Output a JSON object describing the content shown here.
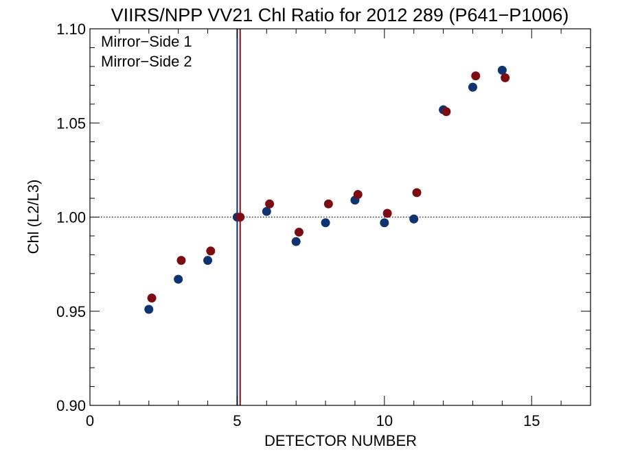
{
  "chart_data": {
    "type": "scatter",
    "title": "VIIRS/NPP VV21 Chl Ratio for 2012 289 (P641−P1006)",
    "xlabel": "DETECTOR NUMBER",
    "ylabel": "Chl (L2/L3)",
    "xlim": [
      0,
      17
    ],
    "ylim": [
      0.9,
      1.1
    ],
    "x_ticks": [
      0,
      5,
      10,
      15
    ],
    "x_tick_labels": [
      "0",
      "5",
      "10",
      "15"
    ],
    "y_ticks": [
      0.9,
      0.95,
      1.0,
      1.05,
      1.1
    ],
    "y_tick_labels": [
      "0.90",
      "0.95",
      "1.00",
      "1.05",
      "1.10"
    ],
    "reference_line_y": 1.0,
    "vertical_lines": [
      {
        "x": 5.0,
        "color": "#0a2d6e"
      },
      {
        "x": 5.1,
        "color": "#7a0a0f"
      }
    ],
    "legend_position": "top-left",
    "series": [
      {
        "name": "Mirror−Side 1",
        "color": "#0f3270",
        "x": [
          2,
          3,
          4,
          5,
          6,
          7,
          8,
          9,
          10,
          11,
          12,
          13,
          14
        ],
        "y": [
          0.951,
          0.967,
          0.977,
          1.0,
          1.003,
          0.987,
          0.997,
          1.009,
          0.997,
          0.999,
          1.057,
          1.069,
          1.078
        ]
      },
      {
        "name": "Mirror−Side 2",
        "color": "#7a0c12",
        "x": [
          2.1,
          3.1,
          4.1,
          5.1,
          6.1,
          7.1,
          8.1,
          9.1,
          10.1,
          11.1,
          12.1,
          13.1,
          14.1
        ],
        "y": [
          0.957,
          0.977,
          0.982,
          1.0,
          1.007,
          0.992,
          1.007,
          1.012,
          1.002,
          1.013,
          1.056,
          1.075,
          1.074
        ]
      }
    ]
  }
}
